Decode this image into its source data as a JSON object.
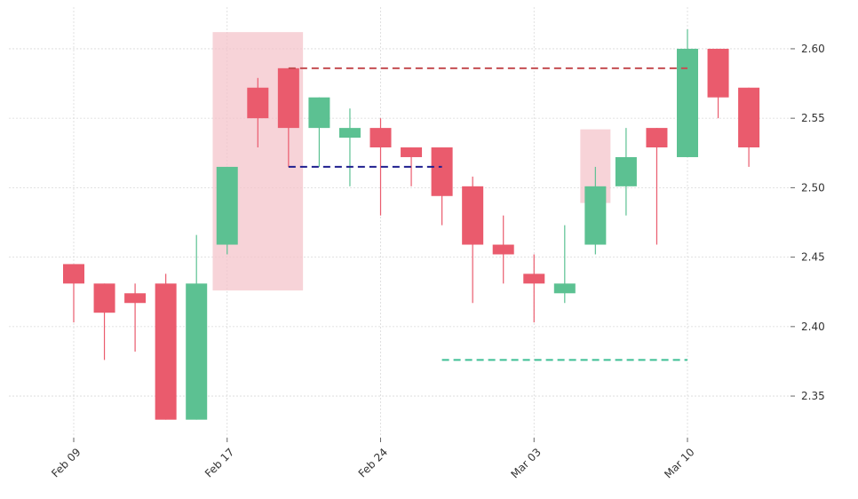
{
  "chart_data": {
    "type": "candlestick",
    "title": "",
    "xlabel": "",
    "ylabel": "",
    "ylim": [
      2.32,
      2.63
    ],
    "y_axis_position": "right",
    "grid": true,
    "y_ticks": [
      2.35,
      2.4,
      2.45,
      2.5,
      2.55,
      2.6
    ],
    "y_tick_labels": [
      "2.35",
      "2.40",
      "2.45",
      "2.50",
      "2.55",
      "2.60"
    ],
    "x_tick_labels": [
      {
        "index": 0,
        "label": "Feb 09"
      },
      {
        "index": 5,
        "label": "Feb 17"
      },
      {
        "index": 10,
        "label": "Feb 24"
      },
      {
        "index": 15,
        "label": "Mar 03"
      },
      {
        "index": 20,
        "label": "Mar 10"
      }
    ],
    "candles": [
      {
        "open": 2.445,
        "high": 2.445,
        "low": 2.403,
        "close": 2.431
      },
      {
        "open": 2.431,
        "high": 2.431,
        "low": 2.376,
        "close": 2.41
      },
      {
        "open": 2.424,
        "high": 2.431,
        "low": 2.382,
        "close": 2.417
      },
      {
        "open": 2.431,
        "high": 2.438,
        "low": 2.333,
        "close": 2.333
      },
      {
        "open": 2.333,
        "high": 2.466,
        "low": 2.333,
        "close": 2.431
      },
      {
        "open": 2.459,
        "high": 2.515,
        "low": 2.452,
        "close": 2.515
      },
      {
        "open": 2.572,
        "high": 2.579,
        "low": 2.529,
        "close": 2.55
      },
      {
        "open": 2.586,
        "high": 2.586,
        "low": 2.515,
        "close": 2.543
      },
      {
        "open": 2.543,
        "high": 2.565,
        "low": 2.515,
        "close": 2.565
      },
      {
        "open": 2.536,
        "high": 2.557,
        "low": 2.501,
        "close": 2.543
      },
      {
        "open": 2.543,
        "high": 2.55,
        "low": 2.48,
        "close": 2.529
      },
      {
        "open": 2.529,
        "high": 2.529,
        "low": 2.501,
        "close": 2.522
      },
      {
        "open": 2.529,
        "high": 2.529,
        "low": 2.473,
        "close": 2.494
      },
      {
        "open": 2.501,
        "high": 2.508,
        "low": 2.417,
        "close": 2.459
      },
      {
        "open": 2.459,
        "high": 2.48,
        "low": 2.431,
        "close": 2.452
      },
      {
        "open": 2.438,
        "high": 2.452,
        "low": 2.403,
        "close": 2.431
      },
      {
        "open": 2.424,
        "high": 2.473,
        "low": 2.417,
        "close": 2.431
      },
      {
        "open": 2.459,
        "high": 2.515,
        "low": 2.452,
        "close": 2.501
      },
      {
        "open": 2.501,
        "high": 2.543,
        "low": 2.48,
        "close": 2.522
      },
      {
        "open": 2.543,
        "high": 2.543,
        "low": 2.459,
        "close": 2.529
      },
      {
        "open": 2.522,
        "high": 2.614,
        "low": 2.522,
        "close": 2.6
      },
      {
        "open": 2.6,
        "high": 2.6,
        "low": 2.55,
        "close": 2.565
      },
      {
        "open": 2.572,
        "high": 2.572,
        "low": 2.515,
        "close": 2.529
      }
    ],
    "highlight_regions": [
      {
        "from_index": 5,
        "to_index": 7,
        "y_low": 2.426,
        "y_high": 2.612,
        "color": "#f4c2c9"
      },
      {
        "from_index": 17,
        "to_index": 17,
        "y_low": 2.489,
        "y_high": 2.542,
        "color": "#f4c2c9"
      }
    ],
    "reference_lines": [
      {
        "y": 2.586,
        "from_index": 7,
        "to_index": 20,
        "color": "#c44e52",
        "style": "dashed"
      },
      {
        "y": 2.515,
        "from_index": 7,
        "to_index": 12,
        "color": "#1f1f8f",
        "style": "dashed"
      },
      {
        "y": 2.376,
        "from_index": 12,
        "to_index": 20,
        "color": "#3dbf94",
        "style": "dashed"
      }
    ],
    "colors": {
      "up": "#5cc192",
      "down": "#ea5b6d",
      "grid": "#d9d9d9",
      "background": "#ffffff"
    }
  }
}
